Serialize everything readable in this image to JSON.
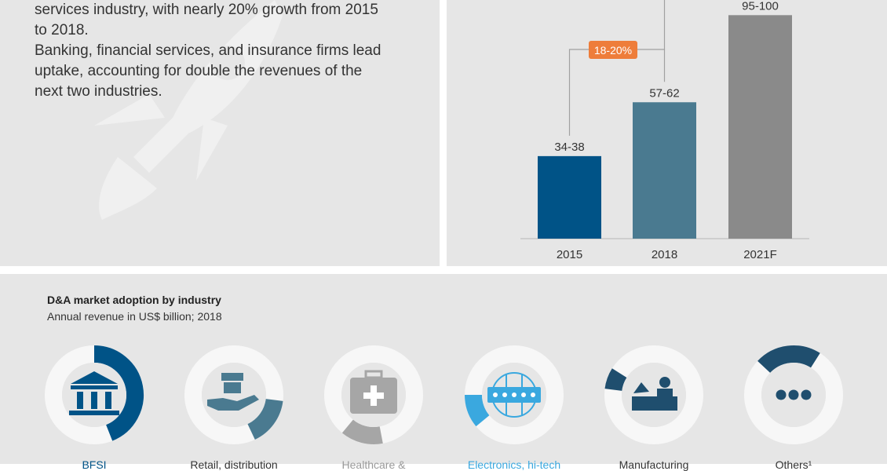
{
  "intro": {
    "lines": [
      "services industry, with nearly 20% growth from 2015",
      "to 2018.",
      "Banking, financial services, and insurance firms lead",
      "uptake, accounting for double the revenues of the",
      "next two industries."
    ]
  },
  "chart_data": {
    "type": "bar",
    "categories": [
      "2015",
      "2018",
      "2021F"
    ],
    "values": [
      36,
      59.5,
      97.5
    ],
    "value_labels": [
      "34-38",
      "57-62",
      "95-100"
    ],
    "bar_colors": [
      "#005387",
      "#4a7a90",
      "#8a8a8a"
    ],
    "growth_annotation": "18-20%",
    "annotation_color": "#ee7d3a",
    "ylim": [
      0,
      100
    ]
  },
  "industries": {
    "title": "D&A market adoption by industry",
    "subtitle": "Annual revenue in US$ billion; 2018",
    "items": [
      {
        "label": "BFSI",
        "icon": "bank-icon",
        "color": "#005387",
        "label_color": "#005387",
        "start": 0,
        "fraction": 0.44
      },
      {
        "label": "Retail, distribution",
        "icon": "retail-hand-icon",
        "color": "#4a7a90",
        "label_color": "#333333",
        "start": 0.27,
        "fraction": 0.16
      },
      {
        "label": "Healthcare &",
        "icon": "medical-kit-icon",
        "color": "#a6a6a6",
        "label_color": "#9a9a9a",
        "start": 0.47,
        "fraction": 0.14
      },
      {
        "label": "Electronics, hi-tech",
        "icon": "circuit-chip-icon",
        "color": "#3aa8df",
        "label_color": "#3aa8df",
        "start": 0.64,
        "fraction": 0.11
      },
      {
        "label": "Manufacturing",
        "icon": "factory-worker-icon",
        "color": "#1f4e6e",
        "label_color": "#333333",
        "start": 0.77,
        "fraction": 0.07
      },
      {
        "label": "Others¹",
        "icon": "more-dots-icon",
        "color": "#1f4e6e",
        "label_color": "#333333",
        "start": 0.87,
        "fraction": 0.22
      }
    ]
  }
}
